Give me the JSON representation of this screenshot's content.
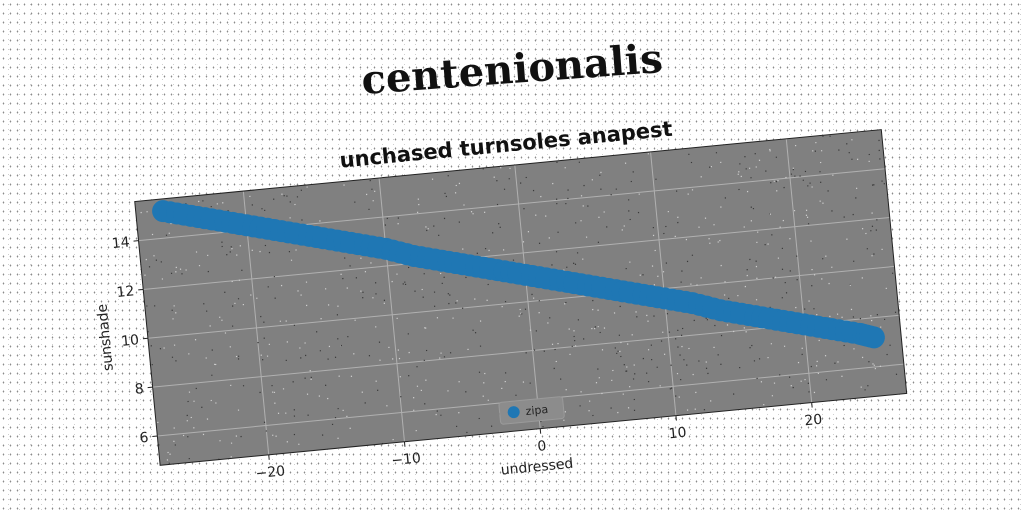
{
  "figure": {
    "suptitle": "centenionalis"
  },
  "chart_data": {
    "type": "scatter",
    "title": "unchased turnsoles anapest",
    "xlabel": "undressed",
    "ylabel": "sunshade",
    "xlim": [
      -28,
      27
    ],
    "ylim": [
      4.8,
      15.6
    ],
    "xticks": [
      -20,
      -10,
      0,
      10,
      20
    ],
    "xtick_labels": [
      "−20",
      "−10",
      "0",
      "10",
      "20"
    ],
    "yticks": [
      6,
      8,
      10,
      12,
      14
    ],
    "ytick_labels": [
      "6",
      "8",
      "10",
      "12",
      "14"
    ],
    "grid": true,
    "legend_position": "bottom-center",
    "background": "#808080",
    "series": [
      {
        "name": "zipa",
        "color": "#1f77b4",
        "x": [
          -26,
          -24,
          -22,
          -20,
          -18,
          -16,
          -14,
          -12,
          -10,
          -8,
          -6,
          -4,
          -2,
          0,
          2,
          4,
          6,
          8,
          10,
          12,
          14,
          16,
          18,
          20,
          22,
          24,
          25
        ],
        "y": [
          15.1,
          14.8,
          14.5,
          14.2,
          13.9,
          13.6,
          13.3,
          13.0,
          12.7,
          12.3,
          12.0,
          11.7,
          11.4,
          11.1,
          10.8,
          10.5,
          10.2,
          9.9,
          9.6,
          9.3,
          8.9,
          8.6,
          8.3,
          8.0,
          7.7,
          7.4,
          7.2
        ]
      }
    ]
  }
}
